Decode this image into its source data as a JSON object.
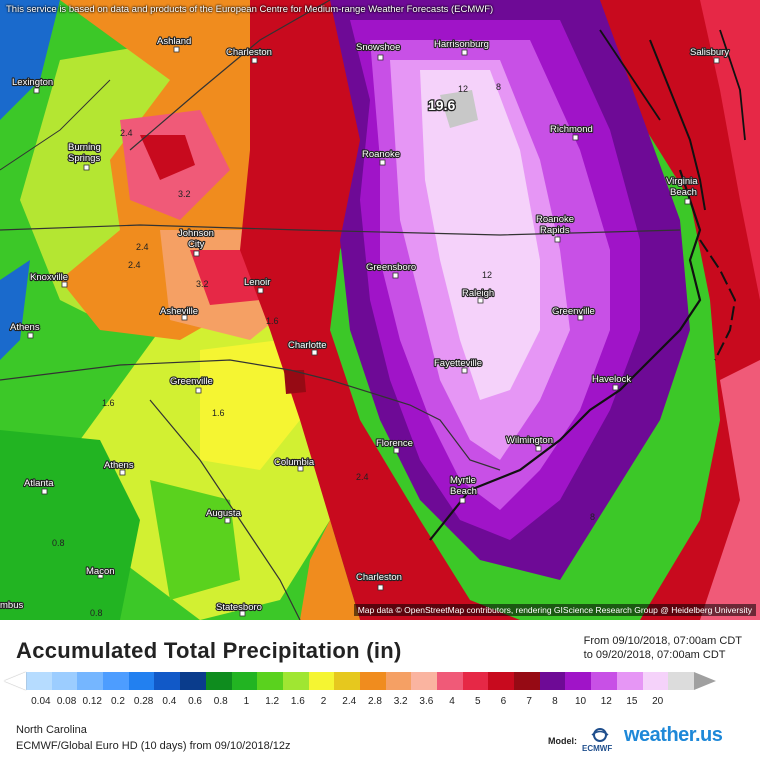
{
  "map": {
    "notice": "This service is based on data and products of the European Centre for Medium-range Weather Forecasts (ECMWF)",
    "attribution": "Map data © OpenStreetMap contributors, rendering GIScience Research Group @ Heidelberg University",
    "max_value": "19.6",
    "cities": [
      {
        "name": "Ashland"
      },
      {
        "name": "Charleston"
      },
      {
        "name": "Snowshoe"
      },
      {
        "name": "Harrisonburg"
      },
      {
        "name": "Salisbury"
      },
      {
        "name": "Lexington"
      },
      {
        "name": "Richmond"
      },
      {
        "name": "Burning"
      },
      {
        "name": "Springs"
      },
      {
        "name": "Roanoke"
      },
      {
        "name": "Virginia"
      },
      {
        "name": "Beach"
      },
      {
        "name": "Johnson"
      },
      {
        "name": "City"
      },
      {
        "name": "Roanoke"
      },
      {
        "name": "Rapids"
      },
      {
        "name": "Knoxville"
      },
      {
        "name": "Greensboro"
      },
      {
        "name": "Lenoir"
      },
      {
        "name": "Raleigh"
      },
      {
        "name": "Athens"
      },
      {
        "name": "Asheville"
      },
      {
        "name": "Greenville"
      },
      {
        "name": "Charlotte"
      },
      {
        "name": "Fayetteville"
      },
      {
        "name": "Greenville"
      },
      {
        "name": "Havelock"
      },
      {
        "name": "Athens"
      },
      {
        "name": "Florence"
      },
      {
        "name": "Wilmington"
      },
      {
        "name": "Columbia"
      },
      {
        "name": "Atlanta"
      },
      {
        "name": "Myrtle"
      },
      {
        "name": "Beach"
      },
      {
        "name": "Augusta"
      },
      {
        "name": "Macon"
      },
      {
        "name": "Charleston"
      },
      {
        "name": "Statesboro"
      },
      {
        "name": "mbus"
      }
    ],
    "contour_labels": [
      "2.4",
      "3.2",
      "2.4",
      "2.4",
      "3.2",
      "1.6",
      "1.6",
      "1.6",
      "2.4",
      "0.8",
      "0.8",
      "12",
      "8",
      "12",
      "8"
    ]
  },
  "legend": {
    "title": "Accumulated Total Precipitation (in)",
    "period_from": "From 09/10/2018, 07:00am CDT",
    "period_to": "to 09/20/2018, 07:00am CDT",
    "scale": [
      {
        "value": "0.04",
        "color": "#b6dcff"
      },
      {
        "value": "0.08",
        "color": "#9ccdff"
      },
      {
        "value": "0.12",
        "color": "#75b6ff"
      },
      {
        "value": "0.2",
        "color": "#4d9dff"
      },
      {
        "value": "0.28",
        "color": "#2280f0"
      },
      {
        "value": "0.4",
        "color": "#1159c8"
      },
      {
        "value": "0.6",
        "color": "#0a3c8c"
      },
      {
        "value": "0.8",
        "color": "#0e8c1e"
      },
      {
        "value": "1",
        "color": "#22b422"
      },
      {
        "value": "1.2",
        "color": "#5ad21e"
      },
      {
        "value": "1.6",
        "color": "#a0e632"
      },
      {
        "value": "2",
        "color": "#f5f532"
      },
      {
        "value": "2.4",
        "color": "#e6c81e"
      },
      {
        "value": "2.8",
        "color": "#f08c1e"
      },
      {
        "value": "3.2",
        "color": "#f5a064"
      },
      {
        "value": "3.6",
        "color": "#fab4a0"
      },
      {
        "value": "4",
        "color": "#f05a78"
      },
      {
        "value": "5",
        "color": "#e62846"
      },
      {
        "value": "6",
        "color": "#c80a1e"
      },
      {
        "value": "7",
        "color": "#960a14"
      },
      {
        "value": "8",
        "color": "#6e0a96"
      },
      {
        "value": "10",
        "color": "#a014c8"
      },
      {
        "value": "12",
        "color": "#c850e6"
      },
      {
        "value": "15",
        "color": "#e696f5"
      },
      {
        "value": "20",
        "color": "#f5d2fa"
      },
      {
        "value": "",
        "color": "#dcdcdc"
      }
    ],
    "region": "North Carolina",
    "model_line": "ECMWF/Global Euro HD (10 days) from 09/10/2018/12z",
    "model_tag": "Model:",
    "ecmwf_text": "ECMWF",
    "brand": "weather.us"
  }
}
